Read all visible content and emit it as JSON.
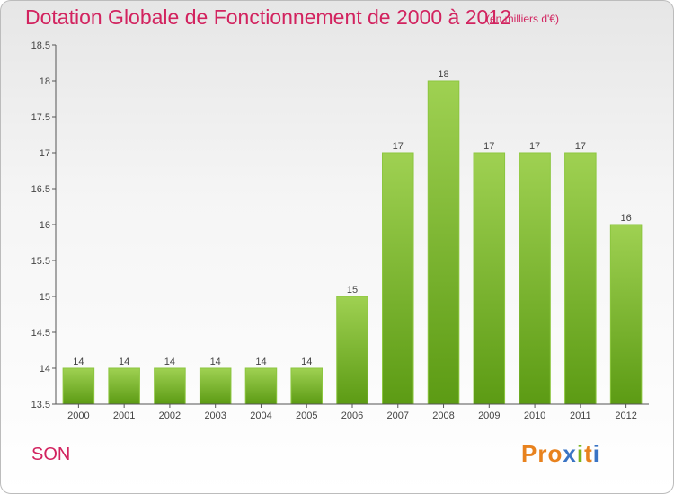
{
  "header": {
    "title": "Dotation Globale de Fonctionnement de 2000 à 2012",
    "subtitle": "(en milliers d'€)"
  },
  "footer": {
    "commune": "SON",
    "logo": [
      "P",
      "r",
      "o",
      "x",
      "i",
      "t",
      "i"
    ]
  },
  "colors": {
    "title": "#d2235f",
    "bar_top": "#9fd152",
    "bar_bottom": "#5c9b14",
    "logo": [
      "#e8821e",
      "#e8821e",
      "#e8821e",
      "#3a74c4",
      "#7ab51d",
      "#e8821e",
      "#3a74c4"
    ]
  },
  "chart_data": {
    "type": "bar",
    "categories": [
      "2000",
      "2001",
      "2002",
      "2003",
      "2004",
      "2005",
      "2006",
      "2007",
      "2008",
      "2009",
      "2010",
      "2011",
      "2012"
    ],
    "values": [
      14,
      14,
      14,
      14,
      14,
      14,
      15,
      17,
      18,
      17,
      17,
      17,
      16
    ],
    "value_labels": [
      "14",
      "14",
      "14",
      "14",
      "14",
      "14",
      "15",
      "17",
      "18",
      "17",
      "17",
      "17",
      "16"
    ],
    "yticks": [
      "13.5",
      "14",
      "14.5",
      "15",
      "15.5",
      "16",
      "16.5",
      "17",
      "17.5",
      "18",
      "18.5"
    ],
    "ylim": [
      13.5,
      18.5
    ],
    "xlabel": "",
    "ylabel": "",
    "grid": false
  }
}
